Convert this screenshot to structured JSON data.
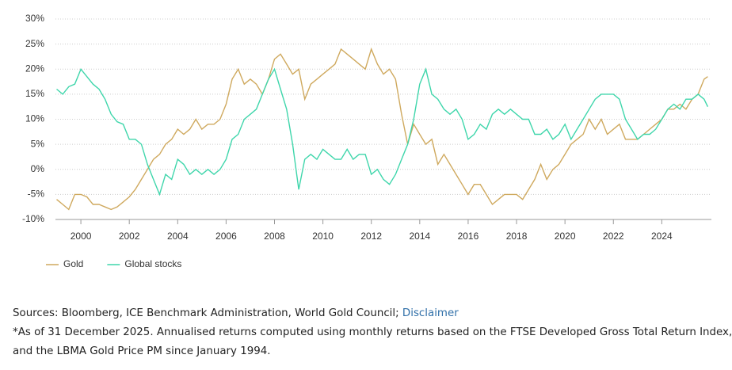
{
  "chart_data": {
    "type": "line",
    "xlim": [
      1998.95,
      2026.05
    ],
    "xticks": [
      2000,
      2002,
      2004,
      2006,
      2008,
      2010,
      2012,
      2014,
      2016,
      2018,
      2020,
      2022,
      2024
    ],
    "ylim": [
      -10,
      30
    ],
    "yticks": [
      {
        "value": -10,
        "label": "-10%"
      },
      {
        "value": -5,
        "label": "-5%"
      },
      {
        "value": 0,
        "label": "0%"
      },
      {
        "value": 5,
        "label": "5%"
      },
      {
        "value": 10,
        "label": "10%"
      },
      {
        "value": 15,
        "label": "15%"
      },
      {
        "value": 20,
        "label": "20%"
      },
      {
        "value": 25,
        "label": "25%"
      },
      {
        "value": 30,
        "label": "30%"
      }
    ],
    "grid": true,
    "legend": "bottom-left",
    "x": [
      1999,
      1999.25,
      1999.5,
      1999.75,
      2000,
      2000.25,
      2000.5,
      2000.75,
      2001,
      2001.25,
      2001.5,
      2001.75,
      2002,
      2002.25,
      2002.5,
      2002.75,
      2003,
      2003.25,
      2003.5,
      2003.75,
      2004,
      2004.25,
      2004.5,
      2004.75,
      2005,
      2005.25,
      2005.5,
      2005.75,
      2006,
      2006.25,
      2006.5,
      2006.75,
      2007,
      2007.25,
      2007.5,
      2007.75,
      2008,
      2008.25,
      2008.5,
      2008.75,
      2009,
      2009.25,
      2009.5,
      2009.75,
      2010,
      2010.25,
      2010.5,
      2010.75,
      2011,
      2011.25,
      2011.5,
      2011.75,
      2012,
      2012.25,
      2012.5,
      2012.75,
      2013,
      2013.25,
      2013.5,
      2013.75,
      2014,
      2014.25,
      2014.5,
      2014.75,
      2015,
      2015.25,
      2015.5,
      2015.75,
      2016,
      2016.25,
      2016.5,
      2016.75,
      2017,
      2017.25,
      2017.5,
      2017.75,
      2018,
      2018.25,
      2018.5,
      2018.75,
      2019,
      2019.25,
      2019.5,
      2019.75,
      2020,
      2020.25,
      2020.5,
      2020.75,
      2021,
      2021.25,
      2021.5,
      2021.75,
      2022,
      2022.25,
      2022.5,
      2022.75,
      2023,
      2023.25,
      2023.5,
      2023.75,
      2024,
      2024.25,
      2024.5,
      2024.75,
      2025,
      2025.25,
      2025.5,
      2025.75,
      2025.9
    ],
    "series": [
      {
        "name": "Gold",
        "color": "#cfa95e",
        "values": [
          -6,
          -7,
          -8,
          -5,
          -5,
          -5.5,
          -7,
          -7,
          -7.5,
          -8,
          -7.5,
          -6.5,
          -5.5,
          -4,
          -2,
          0,
          2,
          3,
          5,
          6,
          8,
          7,
          8,
          10,
          8,
          9,
          9,
          10,
          13,
          18,
          20,
          17,
          18,
          17,
          15,
          18,
          22,
          23,
          21,
          19,
          20,
          14,
          17,
          18,
          19,
          20,
          21,
          24,
          23,
          22,
          21,
          20,
          24,
          21,
          19,
          20,
          18,
          11,
          5,
          9,
          7,
          5,
          6,
          1,
          3,
          1,
          -1,
          -3,
          -5,
          -3,
          -3,
          -5,
          -7,
          -6,
          -5,
          -5,
          -5,
          -6,
          -4,
          -2,
          1,
          -2,
          0,
          1,
          3,
          5,
          6,
          7,
          10,
          8,
          10,
          7,
          8,
          9,
          6,
          6,
          6,
          7,
          8,
          9,
          10,
          12,
          12,
          13,
          12,
          14,
          15,
          18,
          18.5
        ]
      },
      {
        "name": "Global stocks",
        "color": "#3fd6ab",
        "values": [
          16,
          15,
          16.5,
          17,
          20,
          18.5,
          17,
          16,
          14,
          11,
          9.5,
          9,
          6,
          6,
          5,
          1,
          -2,
          -5,
          -1,
          -2,
          2,
          1,
          -1,
          0,
          -1,
          0,
          -1,
          0,
          2,
          6,
          7,
          10,
          11,
          12,
          15,
          18,
          20,
          16,
          12,
          5,
          -4,
          2,
          3,
          2,
          4,
          3,
          2,
          2,
          4,
          2,
          3,
          3,
          -1,
          0,
          -2,
          -3,
          -1,
          2,
          5,
          10,
          17,
          20,
          15,
          14,
          12,
          11,
          12,
          10,
          6,
          7,
          9,
          8,
          11,
          12,
          11,
          12,
          11,
          10,
          10,
          7,
          7,
          8,
          6,
          7,
          9,
          6,
          8,
          10,
          12,
          14,
          15,
          15,
          15,
          14,
          10,
          8,
          6,
          7,
          7,
          8,
          10,
          12,
          13,
          12,
          14,
          14,
          15,
          14,
          12.5
        ]
      }
    ]
  },
  "footer": {
    "sources": "Sources: Bloomberg, ICE Benchmark Administration, World Gold Council; ",
    "disclaimer": "Disclaimer",
    "note_lines": [
      "*As of 31 December 2025. Annualised returns computed using monthly returns based on the FTSE Developed Gross Total Return Index,",
      "and the LBMA Gold Price PM since January 1994."
    ]
  }
}
